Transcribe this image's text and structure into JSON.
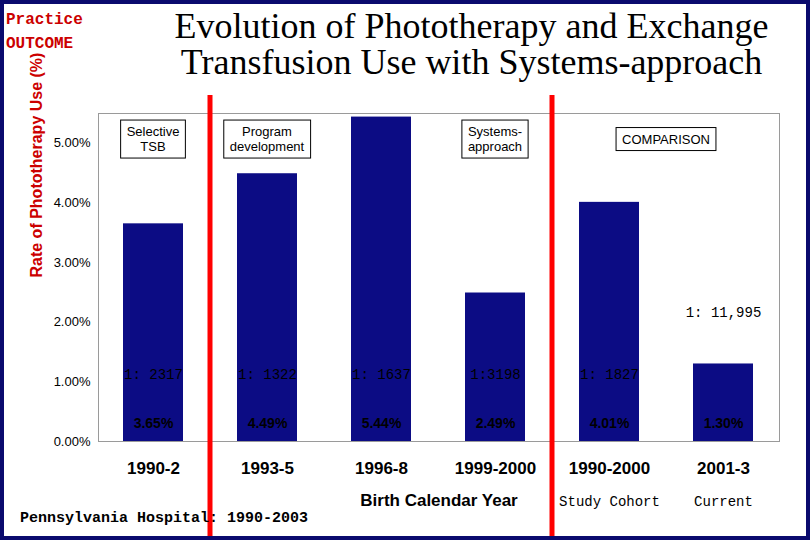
{
  "chart_data": {
    "type": "bar",
    "header": [
      "Practice",
      "OUTCOME"
    ],
    "title": "Evolution of Phototherapy and Exchange Transfusion Use with Systems-approach",
    "ylabel": "Rate of Phototherapy Use (%)",
    "xlabel": "Birth Calendar Year",
    "categories": [
      "1990-2",
      "1993-5",
      "1996-8",
      "1999-2000",
      "1990-2000",
      "2001-3"
    ],
    "values": [
      3.65,
      4.49,
      5.44,
      2.49,
      4.01,
      1.3
    ],
    "value_labels": [
      "3.65%",
      "4.49%",
      "5.44%",
      "2.49%",
      "4.01%",
      "1.30%"
    ],
    "data_labels": true,
    "color": "#0c0c84",
    "ylim": [
      0,
      5.5
    ],
    "yticks": [
      {
        "value": 0,
        "label": "0.00%"
      },
      {
        "value": 1,
        "label": "1.00%"
      },
      {
        "value": 2,
        "label": "2.00%"
      },
      {
        "value": 3,
        "label": "3.00%"
      },
      {
        "value": 4,
        "label": "4.00%"
      },
      {
        "value": 5,
        "label": "5.00%"
      }
    ],
    "grid": false,
    "exchange_transfusion_labels": [
      "1: 2317",
      "1: 1322",
      "1: 1637",
      "1:3198",
      "1: 1827",
      "1: 11,995"
    ],
    "sections": [
      {
        "label": "Selective TSB",
        "categories": [
          "1990-2"
        ]
      },
      {
        "label": "Program development",
        "categories": [
          "1993-5"
        ]
      },
      {
        "label": "Systems-approach",
        "categories": [
          "1999-2000"
        ]
      },
      {
        "label": "COMPARISON",
        "categories": [
          "1990-2000",
          "2001-3"
        ]
      }
    ],
    "dividers_after": [
      "1990-2",
      "1999-2000"
    ],
    "category_notes": [
      {
        "category": "1990-2000",
        "text": "Study Cohort"
      },
      {
        "category": "2001-3",
        "text": "Current"
      }
    ],
    "source": "Pennsylvania Hospital: 1990-2003"
  }
}
